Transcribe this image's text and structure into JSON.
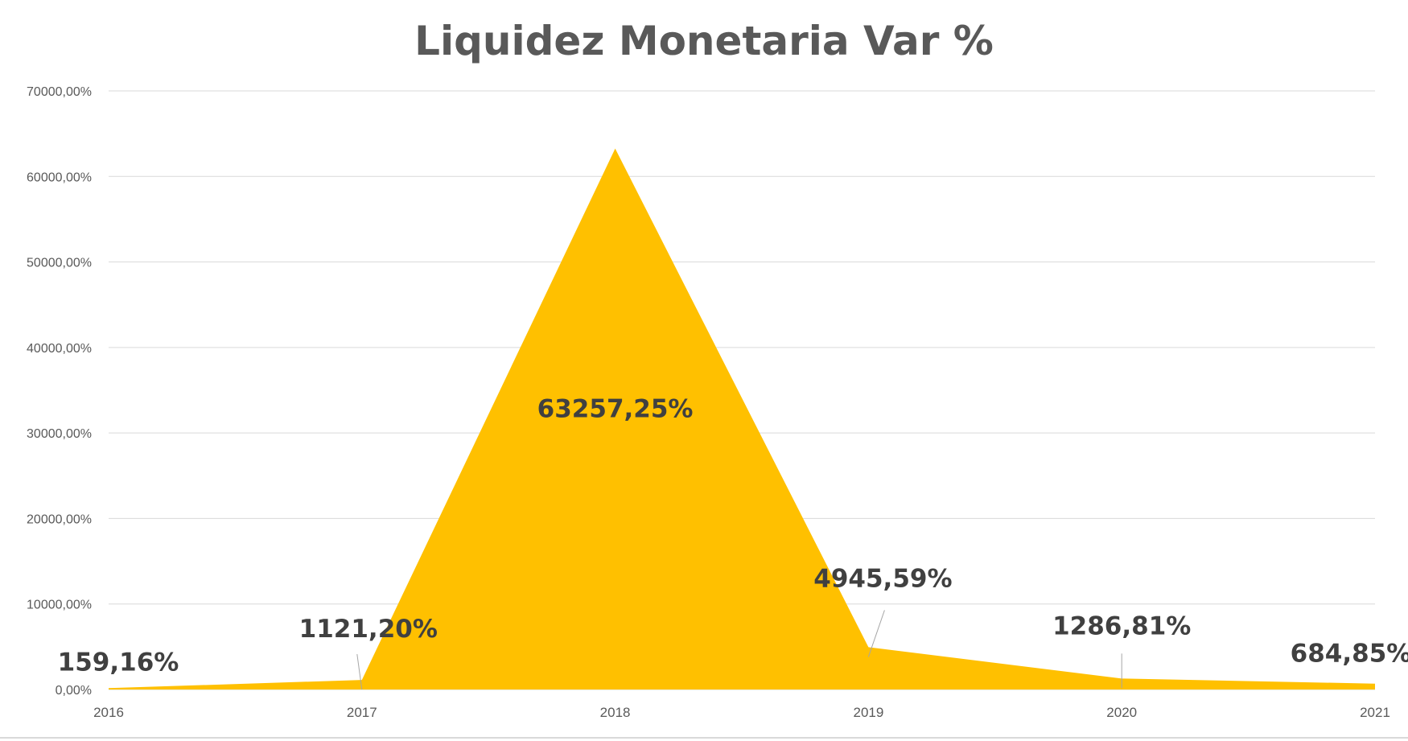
{
  "chart_data": {
    "type": "area",
    "title": "Liquidez Monetaria Var %",
    "xlabel": "",
    "ylabel": "",
    "categories": [
      "2016",
      "2017",
      "2018",
      "2019",
      "2020",
      "2021"
    ],
    "series": [
      {
        "values": [
          159.16,
          1121.2,
          63257.25,
          4945.59,
          1286.81,
          684.85
        ],
        "labels": [
          "159,16%",
          "1121,20%",
          "63257,25%",
          "4945,59%",
          "1286,81%",
          "684,85%"
        ],
        "color": "#ffc000"
      }
    ],
    "ylim": [
      0,
      70000
    ],
    "yticks": [
      0,
      10000,
      20000,
      30000,
      40000,
      50000,
      60000,
      70000
    ],
    "ytick_labels": [
      "0,00%",
      "10000,00%",
      "20000,00%",
      "30000,00%",
      "40000,00%",
      "50000,00%",
      "60000,00%",
      "70000,00%"
    ],
    "grid": true,
    "legend": "none"
  },
  "colors": {
    "fill": "#ffc000",
    "title": "#595959",
    "label": "#404040",
    "axis_text": "#595959",
    "grid": "#d9d9d9"
  }
}
